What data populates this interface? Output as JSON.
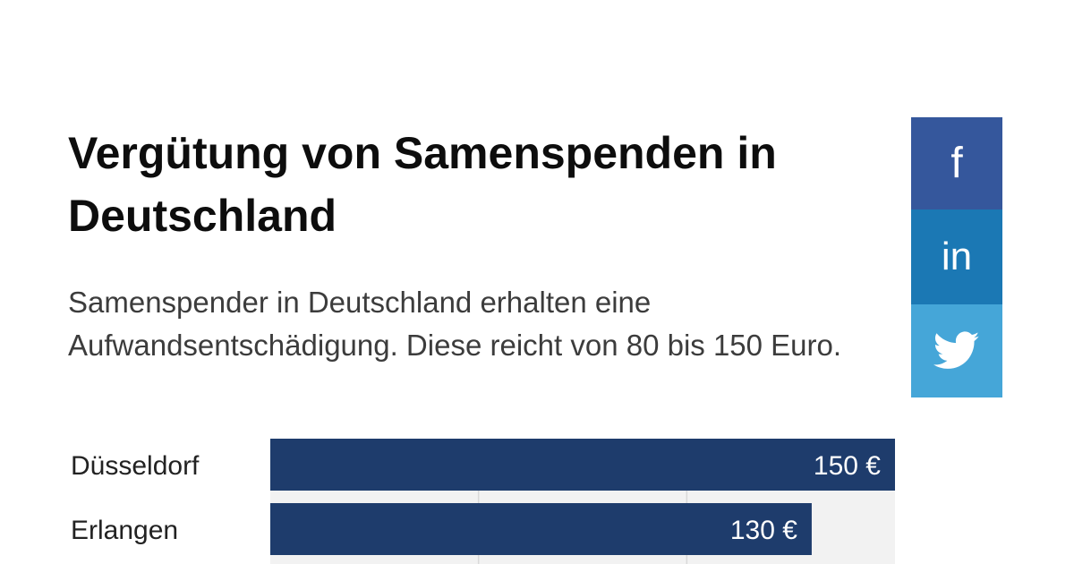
{
  "title": "Vergütung von Samenspenden in Deutschland",
  "subtitle": "Samenspender in Deutschland erhalten eine Aufwandsentschädigung. Diese reicht von 80 bis 150 Euro.",
  "share": {
    "facebook_icon": "facebook-icon",
    "linkedin_icon": "linkedin-icon",
    "twitter_icon": "twitter-icon",
    "colors": {
      "facebook": "#35579c",
      "linkedin": "#1b78b4",
      "twitter": "#45a6d8"
    }
  },
  "chart_data": {
    "type": "bar",
    "orientation": "horizontal",
    "categories": [
      "Düsseldorf",
      "Erlangen"
    ],
    "values": [
      150,
      130
    ],
    "value_labels": [
      "150 €",
      "130 €"
    ],
    "xlim": [
      0,
      150
    ],
    "grid": true,
    "bar_color": "#1e3c6c",
    "track_color": "#f2f2f2"
  }
}
